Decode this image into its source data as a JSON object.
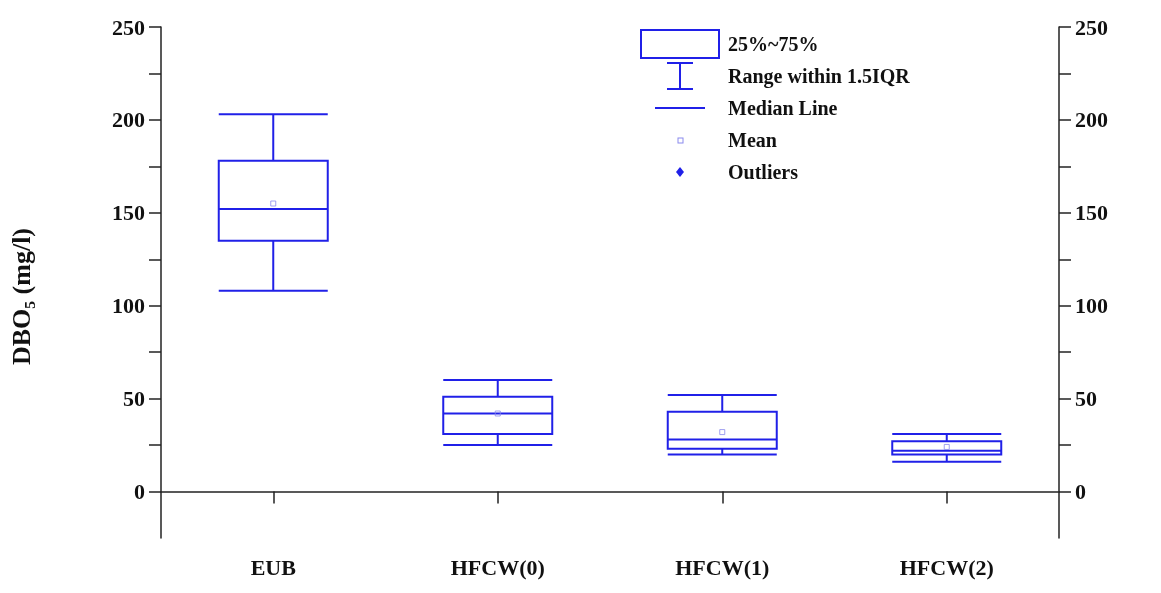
{
  "chart_data": {
    "type": "box",
    "ylabel": "DBO₅ (mg/l)",
    "categories": [
      "EUB",
      "HFCW(0)",
      "HFCW(1)",
      "HFCW(2)"
    ],
    "series": [
      {
        "color": "#2020e8",
        "boxes": [
          {
            "low": 108,
            "q1": 135,
            "median": 152,
            "q3": 178,
            "high": 203,
            "mean": 155
          },
          {
            "low": 25,
            "q1": 31,
            "median": 42,
            "q3": 51,
            "high": 60,
            "mean": 42
          },
          {
            "low": 20,
            "q1": 23,
            "median": 28,
            "q3": 43,
            "high": 52,
            "mean": 32
          },
          {
            "low": 16,
            "q1": 20,
            "median": 22,
            "q3": 27,
            "high": 31,
            "mean": 24
          }
        ]
      }
    ],
    "ylim": [
      -25,
      250
    ],
    "yticks": [
      0,
      {
        "value": 25,
        "label": null
      },
      50,
      {
        "value": 75,
        "label": null
      },
      100,
      {
        "value": 125,
        "label": null
      },
      150,
      {
        "value": 175,
        "label": null
      },
      200,
      {
        "value": 225,
        "label": null
      },
      250
    ],
    "y2lim": [
      -25,
      250
    ],
    "y2ticks": [
      0,
      {
        "value": 25,
        "label": null
      },
      50,
      {
        "value": 75,
        "label": null
      },
      100,
      {
        "value": 125,
        "label": null
      },
      150,
      {
        "value": 175,
        "label": null
      },
      200,
      {
        "value": 225,
        "label": null
      },
      250
    ],
    "annotations": [
      "25%~75%",
      "Range within 1.5IQR",
      "Median Line",
      "Mean",
      "Outliers"
    ]
  }
}
